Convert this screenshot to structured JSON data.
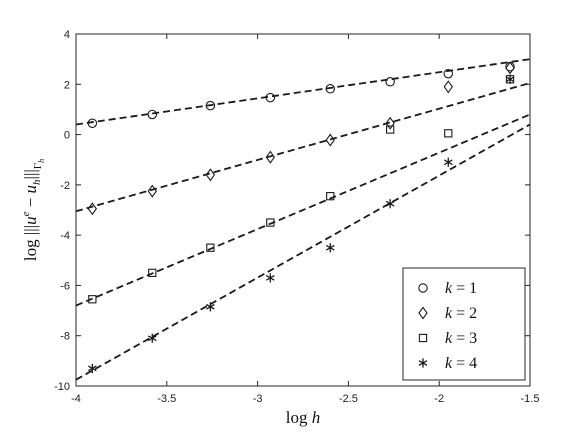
{
  "chart_data": {
    "type": "scatter",
    "xlabel": "log h",
    "ylabel": "log |||u^e − u_h|||_{Γ_h}",
    "xlim": [
      -4,
      -1.5
    ],
    "ylim": [
      -10,
      4
    ],
    "xticks": [
      "-4",
      "-3.5",
      "-3",
      "-2.5",
      "-2",
      "-1.5"
    ],
    "yticks": [
      "4",
      "2",
      "0",
      "-2",
      "-4",
      "-6",
      "-8",
      "-10"
    ],
    "grid": false,
    "legend_position": "bottom-right",
    "series": [
      {
        "name": "k = 1",
        "marker": "circle",
        "x": [
          -3.91,
          -3.58,
          -3.26,
          -2.93,
          -2.6,
          -2.27,
          -1.95,
          -1.61
        ],
        "y": [
          0.45,
          0.8,
          1.15,
          1.47,
          1.82,
          2.1,
          2.42,
          2.7
        ],
        "fit_line": {
          "x": [
            -4,
            -1.5
          ],
          "y": [
            0.4,
            3.0
          ]
        }
      },
      {
        "name": "k = 2",
        "marker": "diamond",
        "x": [
          -3.91,
          -3.58,
          -3.26,
          -2.93,
          -2.6,
          -2.27,
          -1.95,
          -1.61
        ],
        "y": [
          -2.95,
          -2.25,
          -1.6,
          -0.9,
          -0.22,
          0.45,
          1.9,
          2.65
        ],
        "fit_line": {
          "x": [
            -4,
            -1.5
          ],
          "y": [
            -3.05,
            2.05
          ]
        }
      },
      {
        "name": "k = 3",
        "marker": "square",
        "x": [
          -3.91,
          -3.58,
          -3.26,
          -2.93,
          -2.6,
          -2.27,
          -1.95,
          -1.61
        ],
        "y": [
          -6.55,
          -5.5,
          -4.5,
          -3.5,
          -2.45,
          0.2,
          0.05,
          2.2
        ],
        "fit_line": {
          "x": [
            -4,
            -1.5
          ],
          "y": [
            -6.8,
            0.8
          ]
        }
      },
      {
        "name": "k = 4",
        "marker": "asterisk",
        "x": [
          -3.91,
          -3.58,
          -3.26,
          -2.93,
          -2.6,
          -2.27,
          -1.95,
          -1.61
        ],
        "y": [
          -9.3,
          -8.1,
          -6.85,
          -5.7,
          -4.5,
          -2.75,
          -1.1,
          2.2
        ],
        "fit_line": {
          "x": [
            -4,
            -1.5
          ],
          "y": [
            -9.75,
            0.4
          ]
        }
      }
    ]
  },
  "legend": {
    "entries": [
      {
        "k": "k",
        "eq": " = ",
        "val": "1"
      },
      {
        "k": "k",
        "eq": " = ",
        "val": "2"
      },
      {
        "k": "k",
        "eq": " = ",
        "val": "3"
      },
      {
        "k": "k",
        "eq": " = ",
        "val": "4"
      }
    ]
  },
  "labels": {
    "xlabel_log": "log",
    "xlabel_var": "h",
    "ylabel_log": "log",
    "ylabel_bars_left": "|||",
    "ylabel_u": "u",
    "ylabel_e": "e",
    "ylabel_minus": " − ",
    "ylabel_uh": "u",
    "ylabel_h": "h",
    "ylabel_bars_right": "|||",
    "ylabel_gamma": "Γ",
    "ylabel_gamma_sub": "h"
  }
}
